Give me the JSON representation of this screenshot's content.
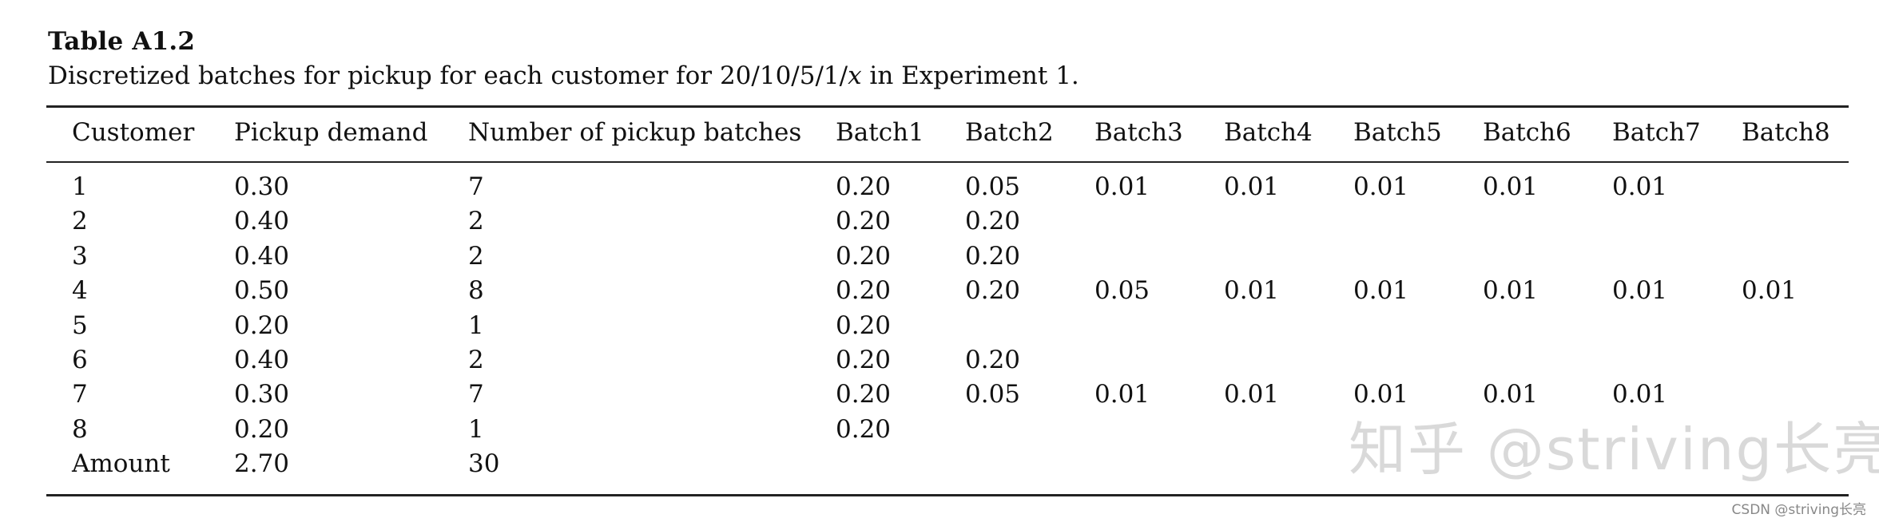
{
  "caption": {
    "label": "Table A1.2",
    "text_before": "Discretized batches for pickup for each customer for 20/10/5/1/",
    "text_var": "x",
    "text_after": " in Experiment 1."
  },
  "table": {
    "headers": [
      "Customer",
      "Pickup demand",
      "Number of pickup batches",
      "Batch1",
      "Batch2",
      "Batch3",
      "Batch4",
      "Batch5",
      "Batch6",
      "Batch7",
      "Batch8"
    ],
    "rows": [
      [
        "1",
        "0.30",
        "7",
        "0.20",
        "0.05",
        "0.01",
        "0.01",
        "0.01",
        "0.01",
        "0.01",
        ""
      ],
      [
        "2",
        "0.40",
        "2",
        "0.20",
        "0.20",
        "",
        "",
        "",
        "",
        "",
        ""
      ],
      [
        "3",
        "0.40",
        "2",
        "0.20",
        "0.20",
        "",
        "",
        "",
        "",
        "",
        ""
      ],
      [
        "4",
        "0.50",
        "8",
        "0.20",
        "0.20",
        "0.05",
        "0.01",
        "0.01",
        "0.01",
        "0.01",
        "0.01"
      ],
      [
        "5",
        "0.20",
        "1",
        "0.20",
        "",
        "",
        "",
        "",
        "",
        "",
        ""
      ],
      [
        "6",
        "0.40",
        "2",
        "0.20",
        "0.20",
        "",
        "",
        "",
        "",
        "",
        ""
      ],
      [
        "7",
        "0.30",
        "7",
        "0.20",
        "0.05",
        "0.01",
        "0.01",
        "0.01",
        "0.01",
        "0.01",
        ""
      ],
      [
        "8",
        "0.20",
        "1",
        "0.20",
        "",
        "",
        "",
        "",
        "",
        "",
        ""
      ],
      [
        "Amount",
        "2.70",
        "30",
        "",
        "",
        "",
        "",
        "",
        "",
        "",
        ""
      ]
    ]
  },
  "watermark": "知乎 @striving长亮",
  "credit": "CSDN @striving长亮"
}
